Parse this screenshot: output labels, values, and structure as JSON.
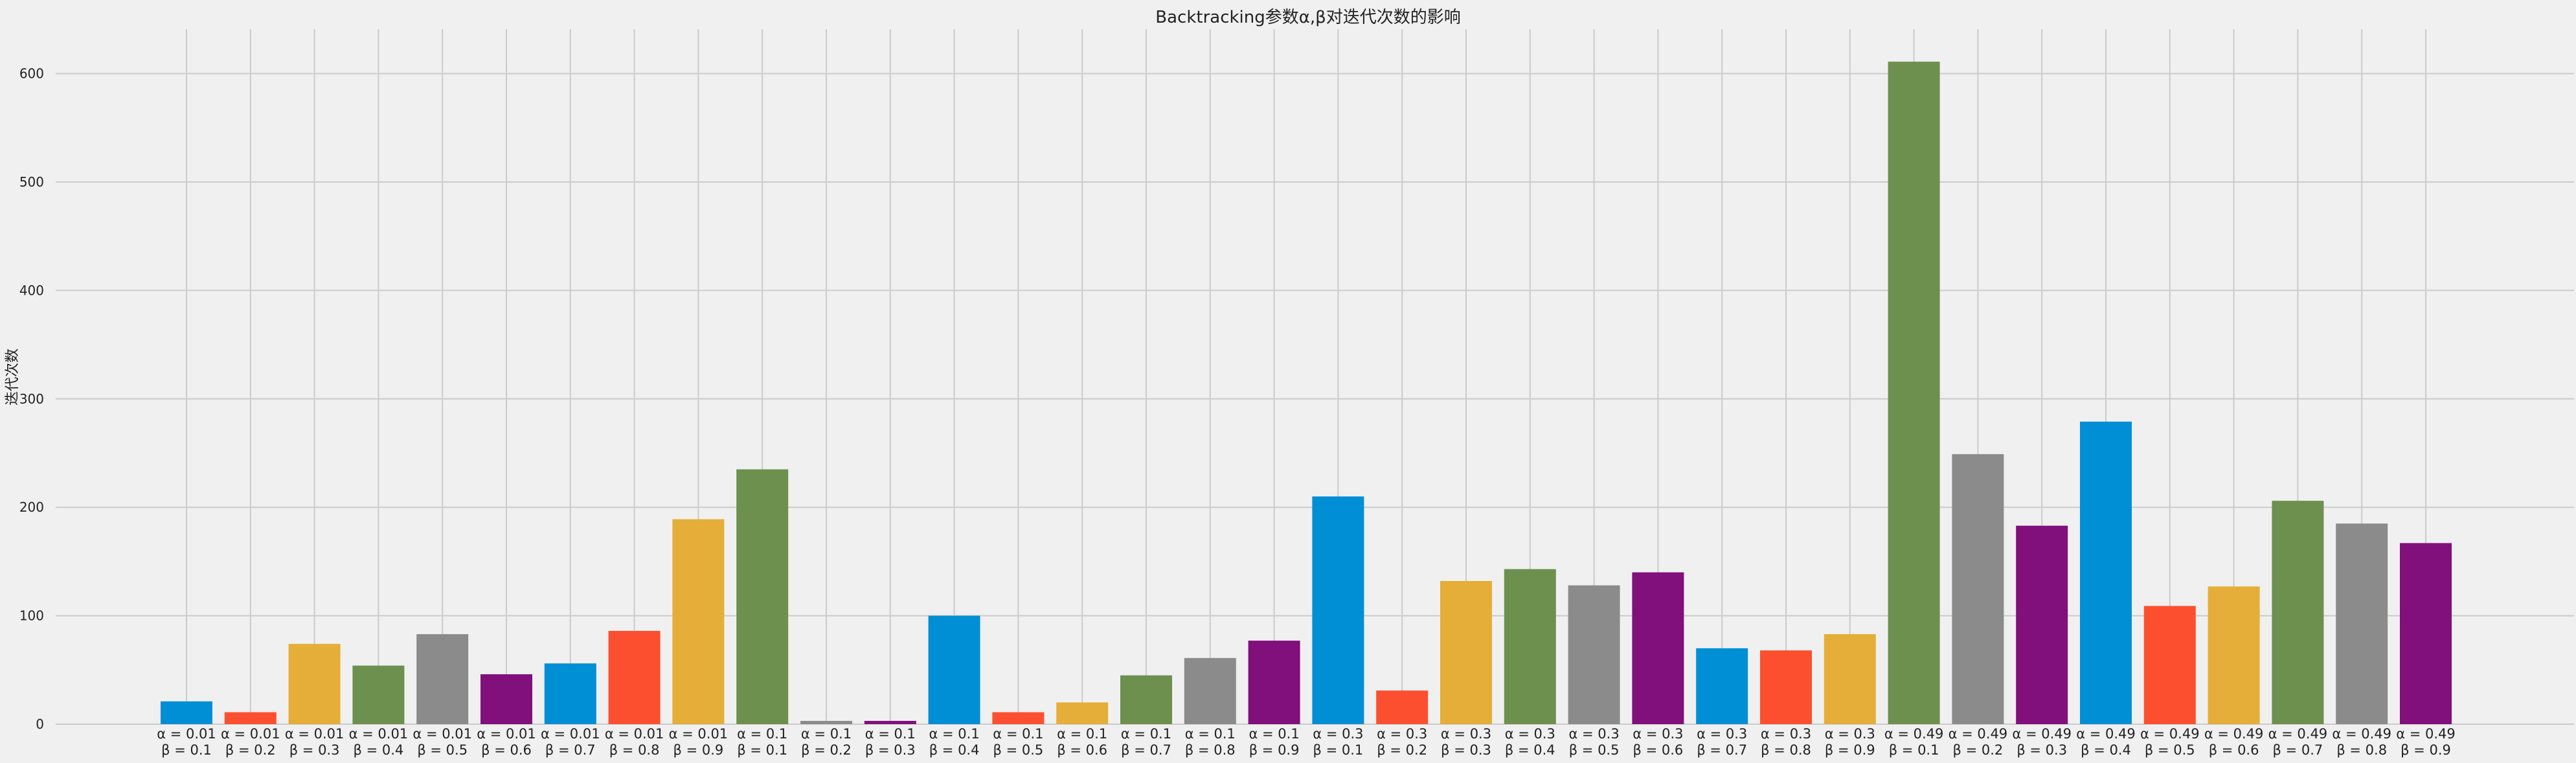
{
  "chart_data": {
    "type": "bar",
    "title": "Backtracking参数α,β对迭代次数的影响",
    "xlabel": "",
    "ylabel": "迭代次数",
    "ylim": [
      0,
      640
    ],
    "yticks": [
      0,
      100,
      200,
      300,
      400,
      500,
      600
    ],
    "grid": true,
    "colors": [
      "#008fd5",
      "#fc4f30",
      "#e5ae38",
      "#6d904f",
      "#8b8b8b",
      "#810f7c"
    ],
    "categories": [
      [
        "α = 0.01",
        "β = 0.1"
      ],
      [
        "α = 0.01",
        "β = 0.2"
      ],
      [
        "α = 0.01",
        "β = 0.3"
      ],
      [
        "α = 0.01",
        "β = 0.4"
      ],
      [
        "α = 0.01",
        "β = 0.5"
      ],
      [
        "α = 0.01",
        "β = 0.6"
      ],
      [
        "α = 0.01",
        "β = 0.7"
      ],
      [
        "α = 0.01",
        "β = 0.8"
      ],
      [
        "α = 0.01",
        "β = 0.9"
      ],
      [
        "α = 0.1",
        "β = 0.1"
      ],
      [
        "α = 0.1",
        "β = 0.2"
      ],
      [
        "α = 0.1",
        "β = 0.3"
      ],
      [
        "α = 0.1",
        "β = 0.4"
      ],
      [
        "α = 0.1",
        "β = 0.5"
      ],
      [
        "α = 0.1",
        "β = 0.6"
      ],
      [
        "α = 0.1",
        "β = 0.7"
      ],
      [
        "α = 0.1",
        "β = 0.8"
      ],
      [
        "α = 0.1",
        "β = 0.9"
      ],
      [
        "α = 0.3",
        "β = 0.1"
      ],
      [
        "α = 0.3",
        "β = 0.2"
      ],
      [
        "α = 0.3",
        "β = 0.3"
      ],
      [
        "α = 0.3",
        "β = 0.4"
      ],
      [
        "α = 0.3",
        "β = 0.5"
      ],
      [
        "α = 0.3",
        "β = 0.6"
      ],
      [
        "α = 0.3",
        "β = 0.7"
      ],
      [
        "α = 0.3",
        "β = 0.8"
      ],
      [
        "α = 0.3",
        "β = 0.9"
      ],
      [
        "α = 0.49",
        "β = 0.1"
      ],
      [
        "α = 0.49",
        "β = 0.2"
      ],
      [
        "α = 0.49",
        "β = 0.3"
      ],
      [
        "α = 0.49",
        "β = 0.4"
      ],
      [
        "α = 0.49",
        "β = 0.5"
      ],
      [
        "α = 0.49",
        "β = 0.6"
      ],
      [
        "α = 0.49",
        "β = 0.7"
      ],
      [
        "α = 0.49",
        "β = 0.8"
      ],
      [
        "α = 0.49",
        "β = 0.9"
      ]
    ],
    "values": [
      21,
      11,
      74,
      54,
      83,
      46,
      56,
      86,
      189,
      235,
      3,
      3,
      100,
      11,
      20,
      45,
      61,
      77,
      210,
      31,
      132,
      143,
      128,
      140,
      70,
      68,
      83,
      611,
      249,
      183,
      279,
      109,
      127,
      206,
      185,
      167
    ]
  }
}
